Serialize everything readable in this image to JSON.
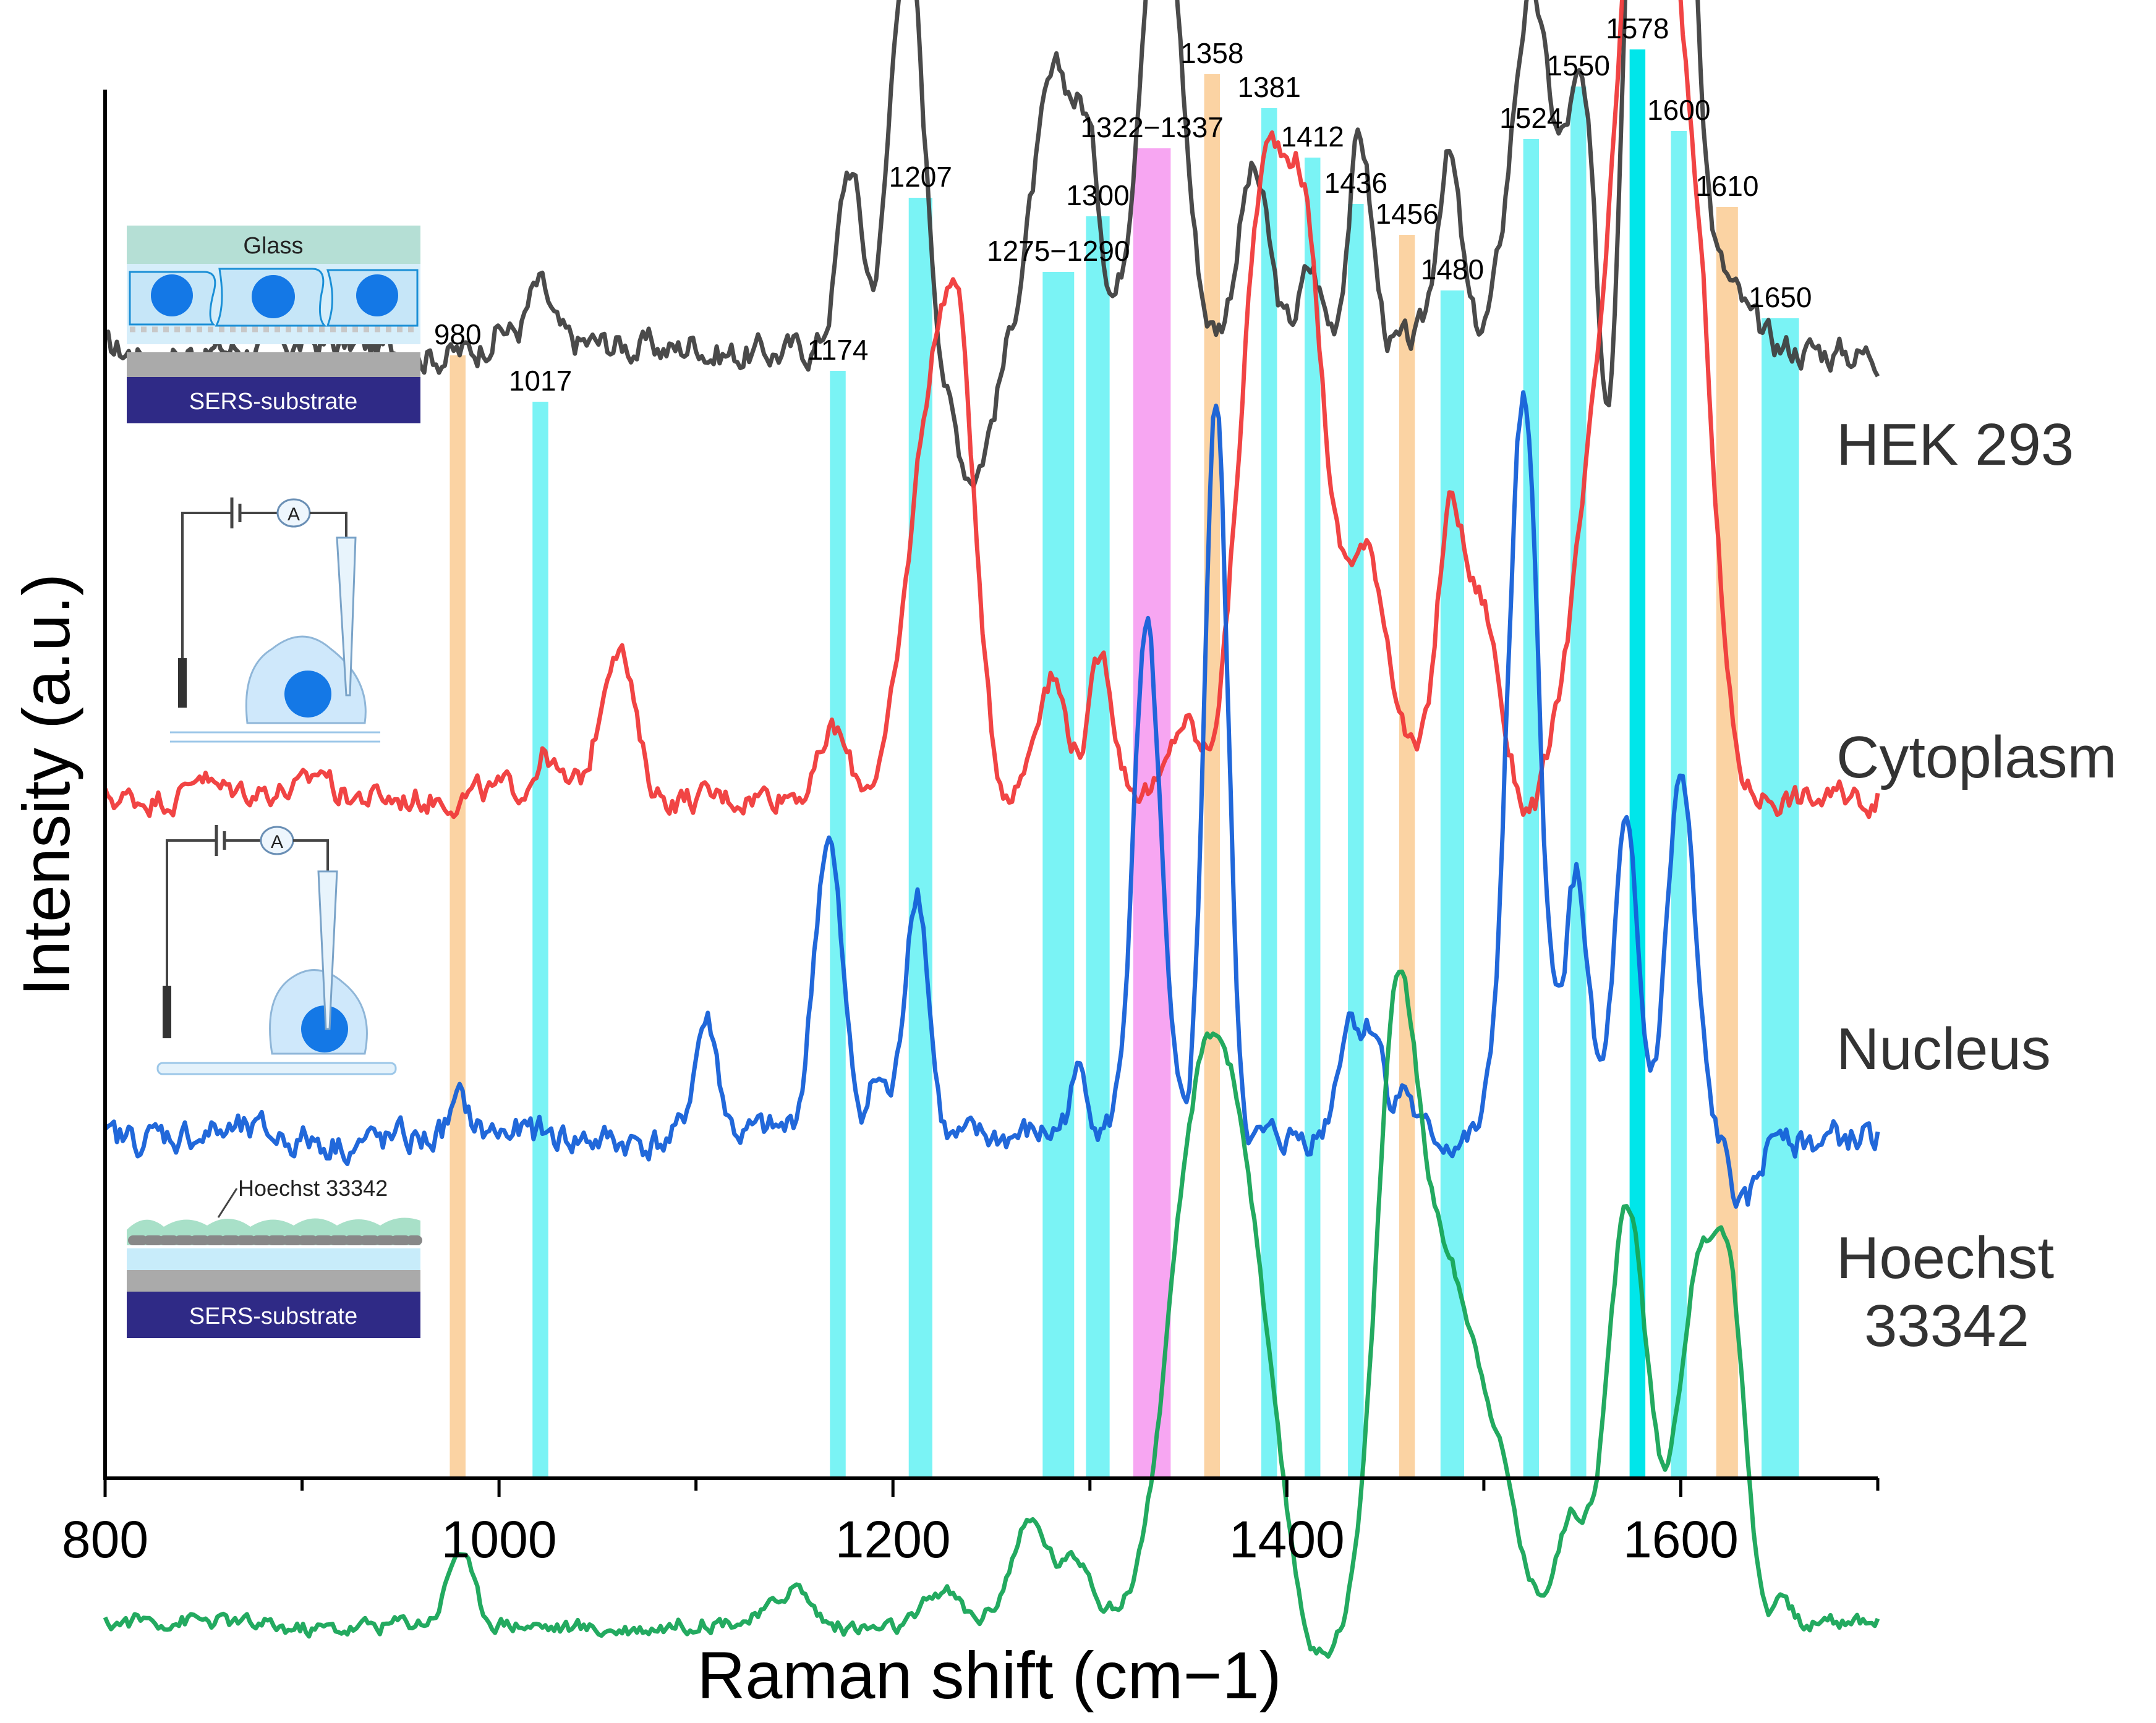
{
  "chart_data": {
    "type": "line",
    "xlabel": "Raman shift (cm−1)",
    "ylabel": "Intensity (a.u.)",
    "xlim": [
      800,
      1700
    ],
    "x_ticks": [
      800,
      1000,
      1200,
      1400,
      1600
    ],
    "y_ticks_shown": false,
    "bands": [
      {
        "label": "980",
        "from": 975,
        "to": 983,
        "color": "#fbd3a3"
      },
      {
        "label": "1017",
        "from": 1017,
        "to": 1025,
        "color": "#7af3f5"
      },
      {
        "label": "1174",
        "from": 1168,
        "to": 1176,
        "color": "#7af3f5"
      },
      {
        "label": "1207",
        "from": 1208,
        "to": 1220,
        "color": "#7af3f5"
      },
      {
        "label": "1275−1290",
        "from": 1276,
        "to": 1292,
        "color": "#7af3f5"
      },
      {
        "label": "1300",
        "from": 1298,
        "to": 1310,
        "color": "#7af3f5"
      },
      {
        "label": "1322−1337",
        "from": 1322,
        "to": 1341,
        "color": "#f7a6f2"
      },
      {
        "label": "1358",
        "from": 1358,
        "to": 1366,
        "color": "#fbd3a3"
      },
      {
        "label": "1381",
        "from": 1387,
        "to": 1395,
        "color": "#7af3f5"
      },
      {
        "label": "1412",
        "from": 1409,
        "to": 1417,
        "color": "#7af3f5"
      },
      {
        "label": "1436",
        "from": 1431,
        "to": 1439,
        "color": "#7af3f5"
      },
      {
        "label": "1456",
        "from": 1457,
        "to": 1465,
        "color": "#fbd3a3"
      },
      {
        "label": "1480",
        "from": 1478,
        "to": 1490,
        "color": "#7af3f5"
      },
      {
        "label": "1524",
        "from": 1520,
        "to": 1528,
        "color": "#7af3f5"
      },
      {
        "label": "1550",
        "from": 1544,
        "to": 1552,
        "color": "#7af3f5"
      },
      {
        "label": "1578",
        "from": 1574,
        "to": 1582,
        "color": "#00e6ea"
      },
      {
        "label": "1600",
        "from": 1595,
        "to": 1603,
        "color": "#7af3f5"
      },
      {
        "label": "1610",
        "from": 1618,
        "to": 1629,
        "color": "#fbd3a3"
      },
      {
        "label": "1650",
        "from": 1641,
        "to": 1660,
        "color": "#7af3f5"
      }
    ],
    "series": [
      {
        "name": "HEK 293",
        "color": "#404040",
        "baseline": 0.745,
        "noise": 0.012,
        "peaks": [
          [
            1000,
            0.02,
            6
          ],
          [
            1020,
            0.05,
            6
          ],
          [
            1100,
            0.01,
            4
          ],
          [
            1178,
            0.15,
            6
          ],
          [
            1207,
            0.35,
            8
          ],
          [
            1283,
            0.23,
            12
          ],
          [
            1300,
            0.1,
            6
          ],
          [
            1336,
            0.42,
            10
          ],
          [
            1383,
            0.15,
            8
          ],
          [
            1412,
            0.07,
            6
          ],
          [
            1437,
            0.18,
            6
          ],
          [
            1482,
            0.16,
            6
          ],
          [
            1524,
            0.3,
            10
          ],
          [
            1550,
            0.22,
            8
          ],
          [
            1579,
            0.55,
            10
          ],
          [
            1600,
            0.48,
            8
          ],
          [
            1622,
            0.05,
            10
          ]
        ],
        "dips": [
          [
            1240,
            0.1,
            10
          ],
          [
            1564,
            0.25,
            6
          ]
        ]
      },
      {
        "name": "Cytoplasm",
        "color": "#f03a3a",
        "baseline": 0.37,
        "noise": 0.01,
        "peaks": [
          [
            848,
            0.02,
            4
          ],
          [
            910,
            0.02,
            4
          ],
          [
            1023,
            0.03,
            5
          ],
          [
            1060,
            0.13,
            8
          ],
          [
            1170,
            0.05,
            6
          ],
          [
            1220,
            0.33,
            12
          ],
          [
            1235,
            0.25,
            8
          ],
          [
            1280,
            0.1,
            8
          ],
          [
            1306,
            0.11,
            6
          ],
          [
            1348,
            0.06,
            6
          ],
          [
            1388,
            0.5,
            12
          ],
          [
            1410,
            0.4,
            10
          ],
          [
            1440,
            0.2,
            12
          ],
          [
            1483,
            0.23,
            7
          ],
          [
            1500,
            0.15,
            8
          ],
          [
            1560,
            0.3,
            14
          ],
          [
            1578,
            0.55,
            10
          ],
          [
            1596,
            0.56,
            10
          ],
          [
            1612,
            0.25,
            8
          ]
        ],
        "dips": [
          [
            1525,
            0.02,
            6
          ]
        ]
      },
      {
        "name": "Nucleus",
        "color": "#1560d8",
        "baseline": 0.08,
        "noise": 0.012,
        "peaks": [
          [
            980,
            0.025,
            5
          ],
          [
            1105,
            0.1,
            6
          ],
          [
            1167,
            0.25,
            7
          ],
          [
            1192,
            0.05,
            5
          ],
          [
            1212,
            0.22,
            6
          ],
          [
            1295,
            0.05,
            5
          ],
          [
            1329,
            0.42,
            7
          ],
          [
            1364,
            0.62,
            6
          ],
          [
            1432,
            0.1,
            6
          ],
          [
            1445,
            0.08,
            5
          ],
          [
            1460,
            0.04,
            4
          ],
          [
            1520,
            0.62,
            8
          ],
          [
            1547,
            0.22,
            6
          ],
          [
            1572,
            0.25,
            6
          ],
          [
            1600,
            0.3,
            7
          ],
          [
            1652,
            0.02,
            4
          ]
        ],
        "dips": [
          [
            1632,
            0.06,
            6
          ]
        ]
      },
      {
        "name": "Hoechst 33342",
        "color": "#17a557",
        "baseline": -0.33,
        "noise": 0.006,
        "peaks": [
          [
            980,
            0.06,
            6
          ],
          [
            1150,
            0.03,
            8
          ],
          [
            1225,
            0.03,
            8
          ],
          [
            1270,
            0.08,
            10
          ],
          [
            1295,
            0.05,
            8
          ],
          [
            1356,
            0.42,
            16
          ],
          [
            1380,
            0.25,
            14
          ],
          [
            1455,
            0.45,
            10
          ],
          [
            1475,
            0.25,
            14
          ],
          [
            1500,
            0.16,
            16
          ],
          [
            1545,
            0.08,
            8
          ],
          [
            1573,
            0.35,
            10
          ],
          [
            1608,
            0.28,
            10
          ],
          [
            1625,
            0.25,
            8
          ],
          [
            1652,
            0.03,
            4
          ]
        ],
        "dips": [
          [
            1415,
            0.04,
            8
          ],
          [
            1524,
            0.02,
            6
          ]
        ]
      }
    ]
  },
  "insets": {
    "hek": {
      "top_label": "Glass",
      "bottom_label": "SERS-substrate"
    },
    "cytoplasm": {
      "meter": "A"
    },
    "nucleus": {
      "meter": "A"
    },
    "hoechst": {
      "dye_label": "Hoechst 33342",
      "bottom_label": "SERS-substrate"
    }
  },
  "colors": {
    "band_cyan": "#7af3f5",
    "band_orange": "#fbd3a3",
    "band_magenta": "#f7a6f2",
    "substrate": "#2f2a86",
    "cell": "#cfe8fb",
    "nucleus": "#1478e6"
  }
}
